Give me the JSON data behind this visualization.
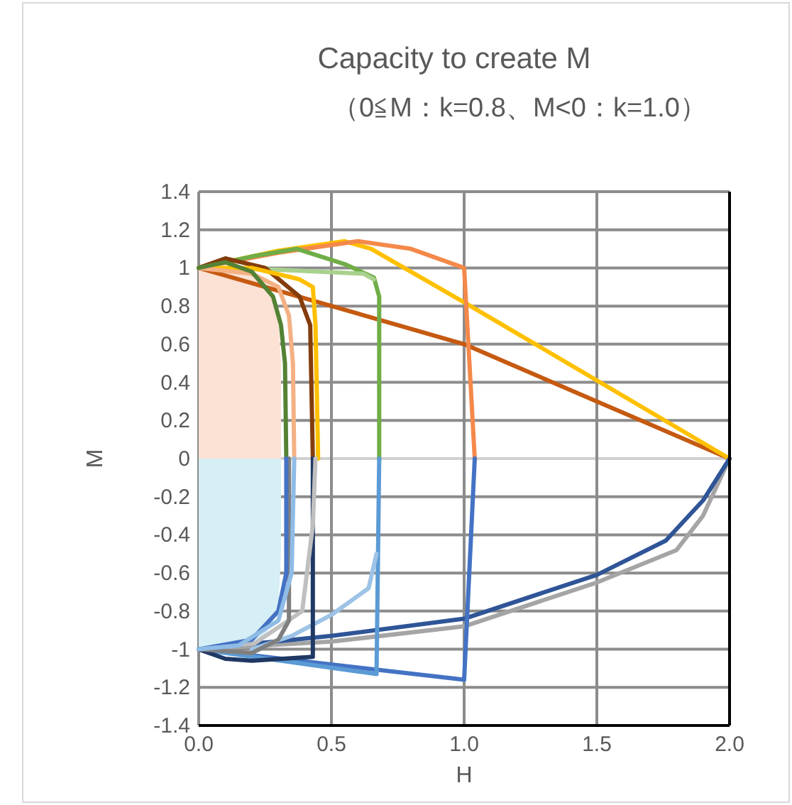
{
  "chart_data": {
    "type": "line",
    "title": "Capacity to create M",
    "subtitle": "（0≦M：k=0.8、M<0：k=1.0）",
    "xlabel": "H",
    "ylabel": "M",
    "xlim": [
      0,
      2
    ],
    "xticks": [
      {
        "value": 0,
        "label": "0.0"
      },
      {
        "value": 0.5,
        "label": "0.5"
      },
      {
        "value": 1,
        "label": "1.0"
      },
      {
        "value": 1.5,
        "label": "1.5"
      },
      {
        "value": 2,
        "label": "2.0"
      }
    ],
    "ylim": [
      -1.4,
      1.4
    ],
    "yticks": [
      -1.4,
      -1.2,
      -1,
      -0.8,
      -0.6,
      -0.4,
      -0.2,
      0,
      0.2,
      0.4,
      0.6,
      0.8,
      1,
      1.2,
      1.4
    ],
    "grid": true,
    "marker": "none",
    "line_style": "solid",
    "series": [
      {
        "type": "area",
        "color": "#fbe2d5",
        "x": [
          0,
          0.2,
          0.27,
          0.3,
          0.31,
          0.31
        ],
        "values": [
          1,
          0.98,
          0.9,
          0.75,
          0.5,
          0
        ]
      },
      {
        "type": "area",
        "color": "#d6eef6",
        "x": [
          0,
          0.15,
          0.25,
          0.3,
          0.31,
          0.31
        ],
        "values": [
          -1,
          -0.99,
          -0.93,
          -0.8,
          -0.5,
          0
        ]
      },
      {
        "color": "#c55a11",
        "x": [
          0,
          1.0,
          2.0
        ],
        "values": [
          1,
          0.6,
          0
        ]
      },
      {
        "color": "#ffc000",
        "x": [
          0,
          0.3,
          0.55,
          0.65,
          1.0,
          2.0
        ],
        "values": [
          1,
          1.09,
          1.14,
          1.1,
          0.82,
          0
        ]
      },
      {
        "color": "#f4894a",
        "x": [
          0,
          0.3,
          0.6,
          0.8,
          1.0,
          1.04
        ],
        "values": [
          1,
          1.08,
          1.14,
          1.1,
          1.0,
          0
        ]
      },
      {
        "color": "#70ad47",
        "x": [
          0,
          0.2,
          0.37,
          0.55,
          0.66,
          0.68,
          0.68
        ],
        "values": [
          1,
          1.06,
          1.1,
          1.02,
          0.95,
          0.85,
          0
        ]
      },
      {
        "color": "#a9d18e",
        "x": [
          0,
          0.3,
          0.62,
          0.66
        ],
        "values": [
          1,
          0.99,
          0.97,
          0.94
        ]
      },
      {
        "color": "#843c0c",
        "x": [
          0,
          0.1,
          0.25,
          0.38,
          0.42,
          0.43
        ],
        "values": [
          1,
          1.05,
          1.0,
          0.85,
          0.7,
          0
        ]
      },
      {
        "color": "#ffc000",
        "x": [
          0,
          0.2,
          0.38,
          0.43,
          0.44,
          0.45
        ],
        "values": [
          1,
          1.0,
          0.94,
          0.9,
          0.7,
          0
        ]
      },
      {
        "color": "#f4b183",
        "x": [
          0,
          0.2,
          0.3,
          0.34,
          0.355,
          0.36
        ],
        "values": [
          1,
          0.97,
          0.9,
          0.75,
          0.5,
          0
        ]
      },
      {
        "color": "#548235",
        "x": [
          0,
          0.1,
          0.2,
          0.28,
          0.31,
          0.325,
          0.33
        ],
        "values": [
          1,
          1.03,
          0.98,
          0.85,
          0.7,
          0.5,
          0
        ]
      },
      {
        "color": "#a5a5a5",
        "x": [
          0,
          0.5,
          1.0,
          1.5,
          1.8,
          1.9,
          2.0
        ],
        "values": [
          -1,
          -0.96,
          -0.88,
          -0.65,
          -0.48,
          -0.3,
          0
        ]
      },
      {
        "color": "#2f5597",
        "x": [
          0,
          0.5,
          1.0,
          1.5,
          1.76,
          1.9,
          2.0
        ],
        "values": [
          -1,
          -0.93,
          -0.84,
          -0.61,
          -0.43,
          -0.22,
          0
        ]
      },
      {
        "color": "#4472c4",
        "x": [
          1.04,
          1.0,
          0
        ],
        "values": [
          0,
          -1.16,
          -1
        ]
      },
      {
        "color": "#5b9bd5",
        "x": [
          0.68,
          0.67,
          0
        ],
        "values": [
          0,
          -1.13,
          -1
        ]
      },
      {
        "color": "#9dc3e6",
        "x": [
          0.67,
          0.64,
          0.5,
          0.35,
          0.2
        ],
        "values": [
          -0.5,
          -0.68,
          -0.82,
          -0.93,
          -1.0
        ]
      },
      {
        "color": "#203864",
        "x": [
          0.43,
          0.43,
          0.2,
          0.1,
          0
        ],
        "values": [
          0,
          -1.04,
          -1.06,
          -1.05,
          -1
        ]
      },
      {
        "color": "#bfbfbf",
        "x": [
          0.44,
          0.43,
          0.39,
          0.21,
          0
        ],
        "values": [
          0,
          -0.35,
          -0.8,
          -0.97,
          -1
        ]
      },
      {
        "color": "#7f7f7f",
        "x": [
          0.34,
          0.34,
          0.3,
          0.2,
          0
        ],
        "values": [
          0,
          -0.85,
          -0.95,
          -1.02,
          -1
        ]
      },
      {
        "color": "#4472c4",
        "x": [
          0.33,
          0.33,
          0.3,
          0.2,
          0
        ],
        "values": [
          0,
          -0.6,
          -0.8,
          -0.95,
          -1
        ]
      },
      {
        "color": "#8fbce6",
        "x": [
          0.36,
          0.35,
          0.3,
          0.15,
          0
        ],
        "values": [
          0,
          -0.6,
          -0.85,
          -0.98,
          -1
        ]
      }
    ]
  }
}
